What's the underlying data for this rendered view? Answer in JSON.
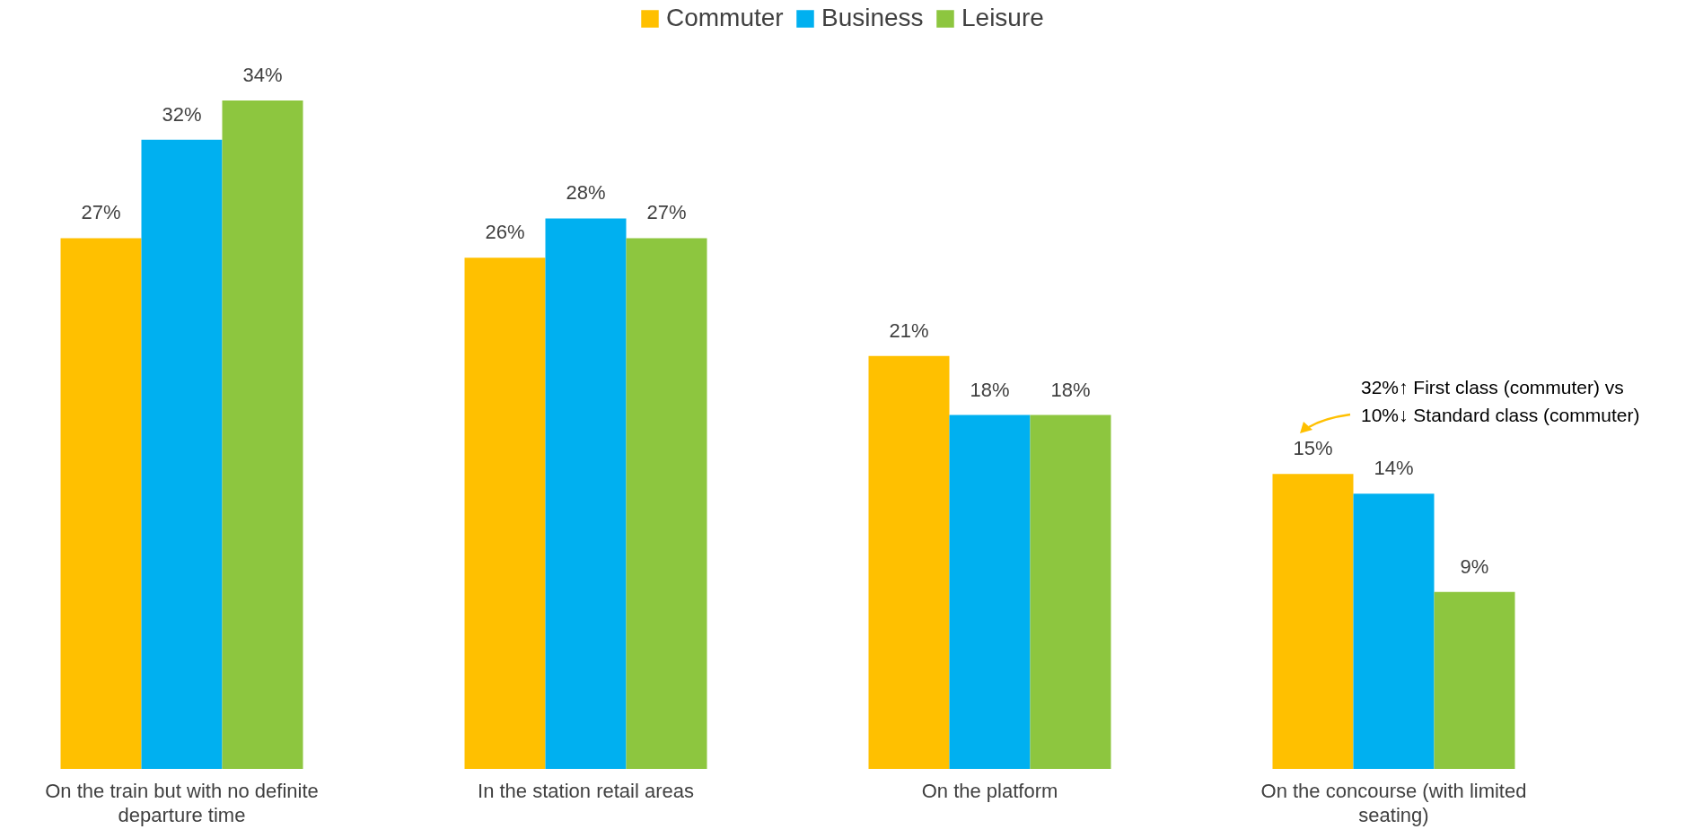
{
  "chart_data": {
    "type": "bar",
    "categories": [
      "On the train but with no definite departure time",
      "In the station retail areas",
      "On the platform",
      "On the concourse (with limited seating)"
    ],
    "series": [
      {
        "name": "Commuter",
        "color": "#ffc000",
        "values": [
          27,
          26,
          21,
          15
        ],
        "value_labels": [
          "27%",
          "26%",
          "21%",
          "15%"
        ]
      },
      {
        "name": "Business",
        "color": "#00b0f0",
        "values": [
          32,
          28,
          18,
          14
        ],
        "value_labels": [
          "32%",
          "28%",
          "18%",
          "14%"
        ]
      },
      {
        "name": "Leisure",
        "color": "#8dc63f",
        "values": [
          34,
          27,
          18,
          9
        ],
        "value_labels": [
          "34%",
          "27%",
          "18%",
          "9%"
        ]
      }
    ],
    "legend": "top",
    "annotations": [
      "32%↑ First class (commuter) vs\n10%↓ Standard class (commuter)"
    ]
  }
}
